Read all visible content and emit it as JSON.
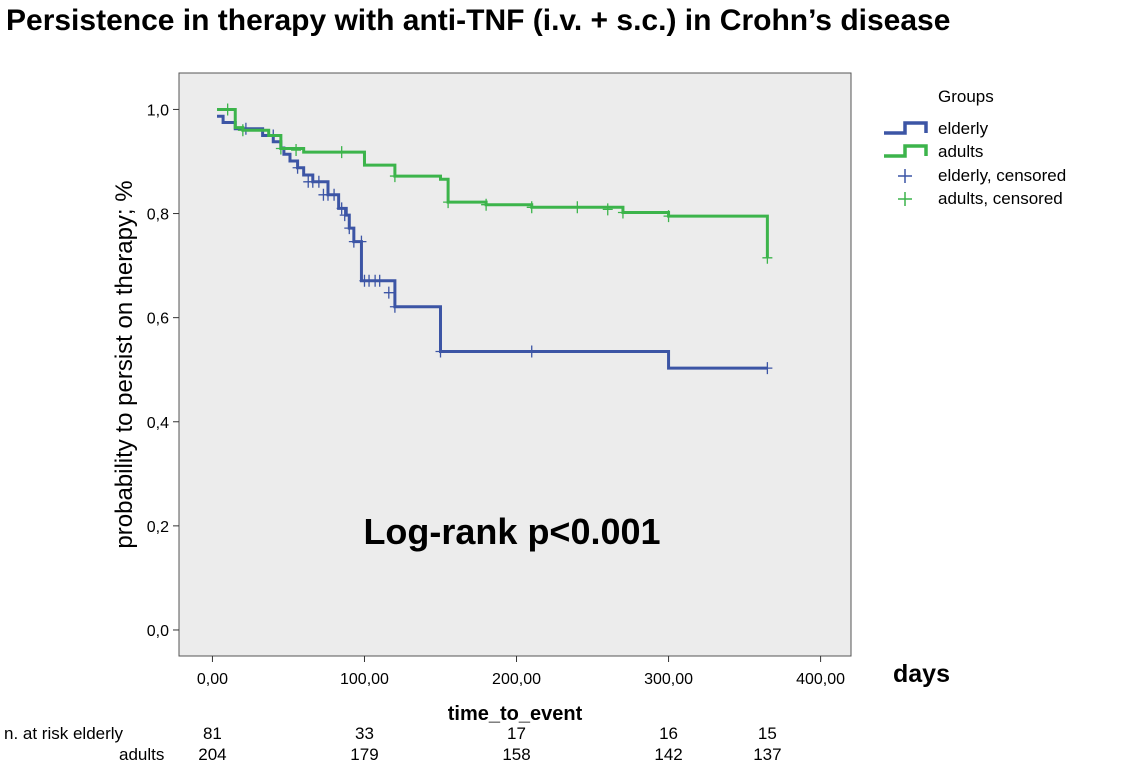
{
  "chart_data": {
    "type": "line",
    "title": "Persistence in therapy with anti-TNF (i.v. + s.c.) in Crohn’s disease",
    "xlabel": "time_to_event",
    "x_unit_label": "days",
    "ylabel": "probability to persist on therapy; %",
    "xlim": [
      -22,
      420
    ],
    "ylim": [
      -0.05,
      1.07
    ],
    "x_ticks": [
      0,
      100,
      200,
      300,
      400
    ],
    "x_tick_labels": [
      "0,00",
      "100,00",
      "200,00",
      "300,00",
      "400,00"
    ],
    "y_ticks": [
      0,
      0.2,
      0.4,
      0.6,
      0.8,
      1.0
    ],
    "y_tick_labels": [
      "0,0",
      "0,2",
      "0,4",
      "0,6",
      "0,8",
      "1,0"
    ],
    "annotation": "Log-rank  p<0.001",
    "grid": false,
    "legend": {
      "title": "Groups",
      "position": "right",
      "entries": [
        "elderly",
        "adults",
        "elderly, censored",
        "adults, censored"
      ]
    },
    "series": [
      {
        "name": "elderly",
        "color": "#3c55a5",
        "steps": [
          [
            3,
            0.987
          ],
          [
            7,
            0.975
          ],
          [
            15,
            0.963
          ],
          [
            33,
            0.95
          ],
          [
            40,
            0.938
          ],
          [
            45,
            0.926
          ],
          [
            47,
            0.914
          ],
          [
            51,
            0.901
          ],
          [
            56,
            0.888
          ],
          [
            60,
            0.874
          ],
          [
            66,
            0.861
          ],
          [
            76,
            0.836
          ],
          [
            83,
            0.81
          ],
          [
            88,
            0.797
          ],
          [
            90,
            0.772
          ],
          [
            93,
            0.746
          ],
          [
            98,
            0.671
          ],
          [
            120,
            0.621
          ],
          [
            150,
            0.535
          ],
          [
            300,
            0.503
          ],
          [
            365,
            0.503
          ]
        ],
        "censored": [
          [
            22,
            0.963
          ],
          [
            40,
            0.95
          ],
          [
            56,
            0.888
          ],
          [
            63,
            0.861
          ],
          [
            66,
            0.861
          ],
          [
            70,
            0.861
          ],
          [
            73,
            0.836
          ],
          [
            76,
            0.836
          ],
          [
            80,
            0.836
          ],
          [
            85,
            0.81
          ],
          [
            87,
            0.797
          ],
          [
            90,
            0.772
          ],
          [
            93,
            0.746
          ],
          [
            98,
            0.746
          ],
          [
            100,
            0.671
          ],
          [
            103,
            0.671
          ],
          [
            107,
            0.671
          ],
          [
            110,
            0.671
          ],
          [
            116,
            0.648
          ],
          [
            120,
            0.621
          ],
          [
            150,
            0.535
          ],
          [
            210,
            0.535
          ],
          [
            365,
            0.503
          ]
        ]
      },
      {
        "name": "adults",
        "color": "#3cb44b",
        "steps": [
          [
            3,
            1.0
          ],
          [
            15,
            0.965
          ],
          [
            20,
            0.96
          ],
          [
            37,
            0.95
          ],
          [
            45,
            0.925
          ],
          [
            60,
            0.918
          ],
          [
            100,
            0.893
          ],
          [
            120,
            0.872
          ],
          [
            150,
            0.866
          ],
          [
            155,
            0.822
          ],
          [
            180,
            0.817
          ],
          [
            210,
            0.812
          ],
          [
            270,
            0.802
          ],
          [
            300,
            0.795
          ],
          [
            365,
            0.715
          ]
        ],
        "censored": [
          [
            10,
            1.0
          ],
          [
            20,
            0.96
          ],
          [
            45,
            0.925
          ],
          [
            55,
            0.922
          ],
          [
            85,
            0.918
          ],
          [
            120,
            0.872
          ],
          [
            155,
            0.822
          ],
          [
            180,
            0.817
          ],
          [
            210,
            0.812
          ],
          [
            240,
            0.812
          ],
          [
            260,
            0.808
          ],
          [
            270,
            0.802
          ],
          [
            300,
            0.795
          ],
          [
            365,
            0.715
          ]
        ]
      }
    ],
    "at_risk": {
      "elderly_label": "n. at risk elderly",
      "adults_label": "adults",
      "times": [
        0,
        100,
        200,
        300,
        365
      ],
      "elderly": [
        "81",
        "33",
        "17",
        "16",
        "15"
      ],
      "adults": [
        "204",
        "179",
        "158",
        "142",
        "137"
      ]
    }
  }
}
